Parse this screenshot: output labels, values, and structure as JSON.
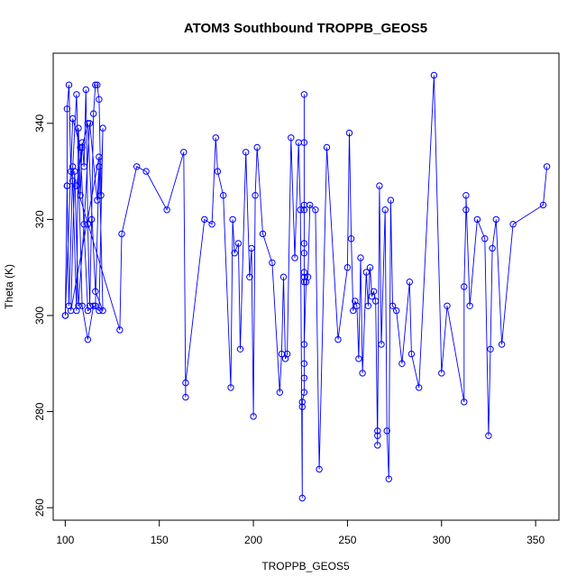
{
  "chart_data": {
    "type": "scatter",
    "title": "ATOM3 Southbound TROPPB_GEOS5",
    "xlabel": "TROPPB_GEOS5",
    "ylabel": "Theta (K)",
    "xlim": [
      93.6,
      362.4
    ],
    "ylim": [
      257.4,
      354.6
    ],
    "x_ticks": [
      100,
      150,
      200,
      250,
      300,
      350
    ],
    "y_ticks": [
      260,
      280,
      300,
      320,
      340
    ],
    "grid": false,
    "legend": "none",
    "marker": "open-circle",
    "connected": true,
    "colors": {
      "series": "#0000ff",
      "axes": "#000000"
    },
    "series": [
      {
        "x": [
          100,
          101,
          101,
          102,
          103,
          104,
          106,
          107,
          108,
          109,
          110,
          111,
          112,
          113,
          114,
          115,
          116,
          117,
          118,
          119,
          120,
          118,
          115,
          112,
          109,
          106,
          104,
          102,
          101,
          100,
          104,
          108,
          112,
          116,
          118,
          117,
          113,
          110,
          107,
          105,
          103,
          118,
          120,
          116,
          112,
          109,
          106,
          129,
          130,
          138,
          143,
          154,
          163,
          164,
          164,
          174,
          178,
          180,
          181,
          184,
          188,
          189,
          190,
          192,
          193,
          196,
          198,
          199,
          200,
          201,
          202,
          205,
          210,
          214,
          215,
          216,
          217,
          218,
          220,
          222,
          224,
          225,
          226,
          226,
          226,
          227,
          227,
          227,
          227,
          227,
          227,
          227,
          227,
          227,
          227,
          227,
          227,
          227,
          228,
          229,
          230,
          233,
          235,
          239,
          245,
          250,
          251,
          252,
          253,
          254,
          255,
          256,
          257,
          258,
          260,
          261,
          262,
          263,
          264,
          265,
          266,
          266,
          266,
          267,
          268,
          270,
          271,
          272,
          273,
          274,
          276,
          279,
          283,
          284,
          288,
          296,
          300,
          303,
          312,
          312,
          313,
          313,
          315,
          319,
          323,
          325,
          326,
          327,
          329,
          332,
          338,
          354,
          356
        ],
        "y": [
          300,
          327,
          343,
          348,
          330,
          328,
          301,
          339,
          325,
          336,
          331,
          347,
          319,
          302,
          320,
          342,
          348,
          348,
          345,
          325,
          339,
          301,
          302,
          295,
          302,
          346,
          331,
          302,
          327,
          300,
          341,
          335,
          301,
          302,
          331,
          324,
          340,
          319,
          302,
          330,
          301,
          333,
          301,
          305,
          340,
          335,
          327,
          297,
          317,
          331,
          330,
          322,
          334,
          283,
          286,
          320,
          319,
          337,
          330,
          325,
          285,
          320,
          313,
          315,
          293,
          334,
          308,
          314,
          279,
          325,
          335,
          317,
          311,
          284,
          292,
          308,
          291,
          292,
          337,
          312,
          336,
          322,
          262,
          281,
          282,
          284,
          287,
          290,
          307,
          308,
          309,
          313,
          315,
          322,
          323,
          336,
          346,
          294,
          307,
          308,
          323,
          322,
          268,
          335,
          295,
          310,
          338,
          316,
          301,
          303,
          302,
          291,
          312,
          288,
          309,
          302,
          310,
          304,
          305,
          303,
          273,
          275,
          276,
          327,
          294,
          322,
          276,
          266,
          324,
          302,
          301,
          290,
          307,
          292,
          285,
          350,
          288,
          302,
          282,
          306,
          322,
          325,
          302,
          320,
          316,
          275,
          293,
          314,
          320,
          294,
          319,
          323,
          331
        ]
      }
    ]
  }
}
